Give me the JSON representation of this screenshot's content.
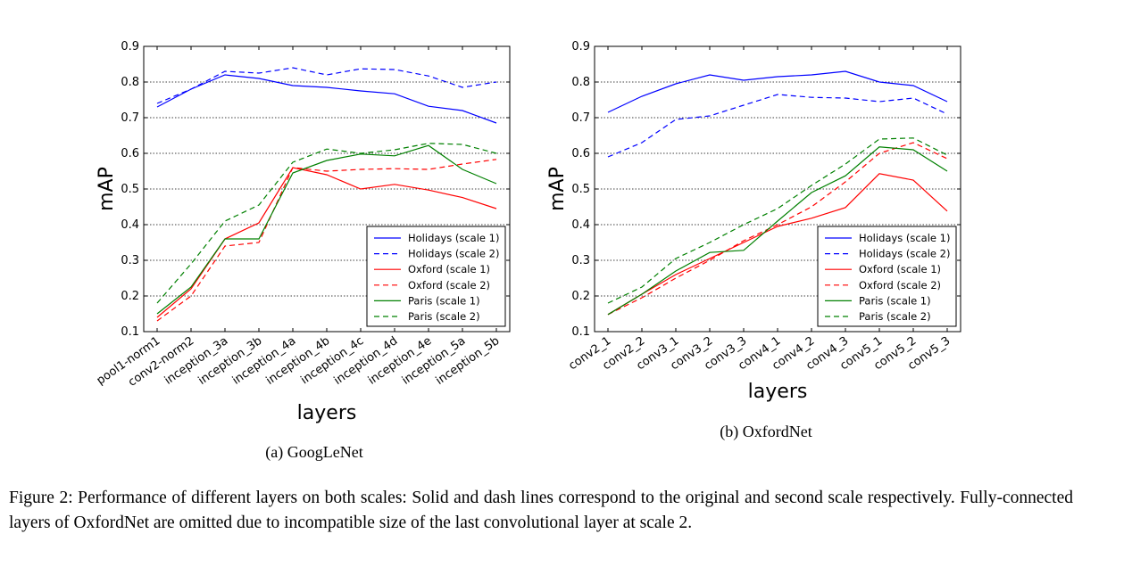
{
  "figure": {
    "caption": "Figure 2: Performance of different layers on both scales: Solid and dash lines correspond to the original and second scale respectively. Fully-connected layers of OxfordNet are omitted due to incompatible size of the last convolutional layer at scale 2."
  },
  "chart_data": [
    {
      "type": "line",
      "subcaption": "(a) GoogLeNet",
      "xlabel": "layers",
      "ylabel": "mAP",
      "ylim": [
        0.1,
        0.9
      ],
      "yticks": [
        "0.1",
        "0.2",
        "0.3",
        "0.4",
        "0.5",
        "0.6",
        "0.7",
        "0.8",
        "0.9"
      ],
      "grid": "horizontal dotted",
      "legend_position": "lower-right",
      "categories": [
        "pool1-norm1",
        "conv2-norm2",
        "inception_3a",
        "inception_3b",
        "inception_4a",
        "inception_4b",
        "inception_4c",
        "inception_4d",
        "inception_4e",
        "inception_5a",
        "inception_5b"
      ],
      "series": [
        {
          "name": "Holidays (scale 1)",
          "color": "#0000ff",
          "dash": false,
          "values": [
            0.73,
            0.78,
            0.82,
            0.81,
            0.79,
            0.785,
            0.775,
            0.767,
            0.732,
            0.72,
            0.685
          ]
        },
        {
          "name": "Holidays (scale 2)",
          "color": "#0000ff",
          "dash": true,
          "values": [
            0.74,
            0.78,
            0.83,
            0.825,
            0.84,
            0.82,
            0.837,
            0.835,
            0.817,
            0.785,
            0.8
          ]
        },
        {
          "name": "Oxford (scale 1)",
          "color": "#ff0000",
          "dash": false,
          "values": [
            0.14,
            0.22,
            0.36,
            0.405,
            0.56,
            0.54,
            0.5,
            0.513,
            0.497,
            0.476,
            0.445
          ]
        },
        {
          "name": "Oxford (scale 2)",
          "color": "#ff0000",
          "dash": true,
          "values": [
            0.13,
            0.2,
            0.34,
            0.35,
            0.56,
            0.55,
            0.555,
            0.557,
            0.555,
            0.57,
            0.583
          ]
        },
        {
          "name": "Paris (scale 1)",
          "color": "#008000",
          "dash": false,
          "values": [
            0.15,
            0.225,
            0.36,
            0.36,
            0.545,
            0.58,
            0.598,
            0.593,
            0.622,
            0.555,
            0.515
          ]
        },
        {
          "name": "Paris (scale 2)",
          "color": "#008000",
          "dash": true,
          "values": [
            0.18,
            0.29,
            0.41,
            0.455,
            0.575,
            0.612,
            0.6,
            0.61,
            0.628,
            0.625,
            0.6
          ]
        }
      ]
    },
    {
      "type": "line",
      "subcaption": "(b) OxfordNet",
      "xlabel": "layers",
      "ylabel": "mAP",
      "ylim": [
        0.1,
        0.9
      ],
      "yticks": [
        "0.1",
        "0.2",
        "0.3",
        "0.4",
        "0.5",
        "0.6",
        "0.7",
        "0.8",
        "0.9"
      ],
      "grid": "horizontal dotted",
      "legend_position": "lower-right",
      "categories": [
        "conv2_1",
        "conv2_2",
        "conv3_1",
        "conv3_2",
        "conv3_3",
        "conv4_1",
        "conv4_2",
        "conv4_3",
        "conv5_1",
        "conv5_2",
        "conv5_3"
      ],
      "series": [
        {
          "name": "Holidays (scale 1)",
          "color": "#0000ff",
          "dash": false,
          "values": [
            0.715,
            0.76,
            0.795,
            0.82,
            0.805,
            0.815,
            0.82,
            0.83,
            0.8,
            0.79,
            0.745
          ]
        },
        {
          "name": "Holidays (scale 2)",
          "color": "#0000ff",
          "dash": true,
          "values": [
            0.59,
            0.63,
            0.695,
            0.705,
            0.735,
            0.765,
            0.757,
            0.755,
            0.745,
            0.755,
            0.71
          ]
        },
        {
          "name": "Oxford (scale 1)",
          "color": "#ff0000",
          "dash": false,
          "values": [
            0.148,
            0.205,
            0.26,
            0.305,
            0.35,
            0.395,
            0.418,
            0.448,
            0.543,
            0.525,
            0.438
          ]
        },
        {
          "name": "Oxford (scale 2)",
          "color": "#ff0000",
          "dash": true,
          "values": [
            0.148,
            0.195,
            0.25,
            0.3,
            0.355,
            0.4,
            0.45,
            0.52,
            0.6,
            0.63,
            0.585
          ]
        },
        {
          "name": "Paris (scale 1)",
          "color": "#008000",
          "dash": false,
          "values": [
            0.148,
            0.205,
            0.27,
            0.322,
            0.328,
            0.41,
            0.49,
            0.537,
            0.618,
            0.61,
            0.55
          ]
        },
        {
          "name": "Paris (scale 2)",
          "color": "#008000",
          "dash": true,
          "values": [
            0.18,
            0.225,
            0.305,
            0.35,
            0.4,
            0.445,
            0.51,
            0.57,
            0.64,
            0.643,
            0.595
          ]
        }
      ]
    }
  ]
}
